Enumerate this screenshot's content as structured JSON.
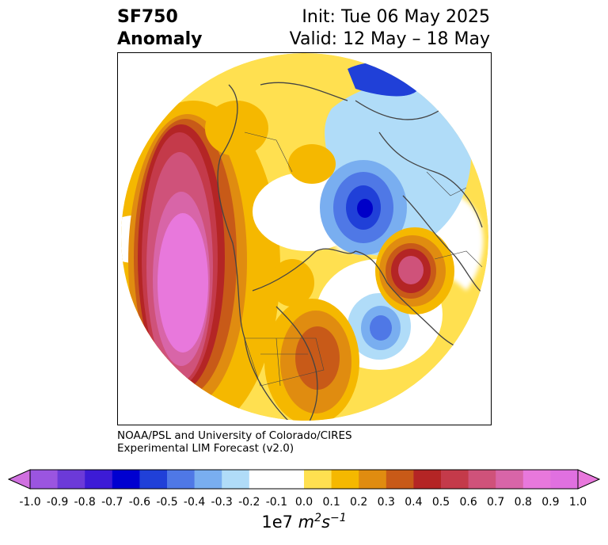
{
  "title": {
    "left_line1": "SF750",
    "left_line2": "Anomaly",
    "right_line1": "Init: Tue 06 May 2025",
    "right_line2": "Valid: 12 May – 18 May"
  },
  "credit": {
    "line1": "NOAA/PSL and University of Colorado/CIRES",
    "line2": "Experimental LIM Forecast (v2.0)"
  },
  "colorbar": {
    "ticks": [
      "-1.0",
      "-0.9",
      "-0.8",
      "-0.7",
      "-0.6",
      "-0.5",
      "-0.4",
      "-0.3",
      "-0.2",
      "-0.1",
      "0.0",
      "0.1",
      "0.2",
      "0.3",
      "0.4",
      "0.5",
      "0.6",
      "0.7",
      "0.8",
      "0.9",
      "1.0"
    ],
    "colors": [
      "#9b55e0",
      "#6c3ad8",
      "#3d1bd6",
      "#0000d0",
      "#2040d8",
      "#4f78e6",
      "#79aef0",
      "#b0dcf8",
      "#ffffff",
      "#ffffff",
      "#ffe050",
      "#f5b800",
      "#e08c10",
      "#c85a18",
      "#b42525",
      "#c43a4a",
      "#cf527a",
      "#d865a8",
      "#e878dc",
      "#e070e0"
    ],
    "under_color": "#d070e0",
    "over_color": "#e878dc",
    "units_base": "1e7 ",
    "units_m": "m",
    "units_m_exp": "2",
    "units_s": "s",
    "units_s_exp": "−1"
  },
  "map": {
    "projection": "north-polar-stereographic",
    "anomaly_colors": {
      "neg_strong": "#0000c8",
      "neg_mid": "#4f78e6",
      "neg_weak": "#b0dcf8",
      "pos_weak": "#ffe050",
      "pos_mid": "#f5b800",
      "pos_strong": "#c85a18",
      "pos_red": "#b42525",
      "pos_pink": "#cf527a",
      "pos_magenta": "#e878dc"
    }
  }
}
